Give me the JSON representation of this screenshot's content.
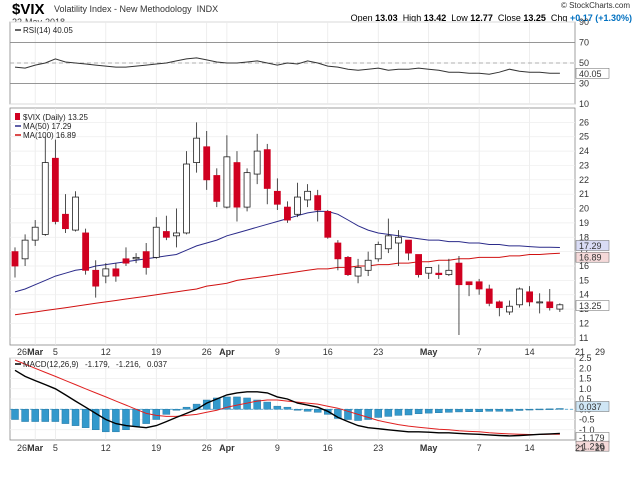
{
  "header": {
    "symbol": "$VIX",
    "name": "Volatility Index - New Methodology",
    "exchange": "INDX",
    "date": "22-May-2018",
    "open_label": "Open",
    "open": "13.03",
    "high_label": "High",
    "high": "13.42",
    "low_label": "Low",
    "low": "12.77",
    "close_label": "Close",
    "close": "13.25",
    "chg_label": "Chg",
    "chg": "+0.17 (+1.30%)",
    "brand": "© StockCharts.com"
  },
  "colors": {
    "up": "#ffffff",
    "down": "#d00020",
    "ma50": "#2b2b8a",
    "ma100": "#d01010",
    "rsi": "#333333",
    "macd": "#000000",
    "signal": "#e02020",
    "hist": "#3399cc"
  },
  "chart_data": [
    {
      "type": "line",
      "panel": "RSI",
      "legend": "RSI(14) 40.05",
      "ylim": [
        10,
        90
      ],
      "y_ticks": [
        10,
        30,
        50,
        70,
        90
      ],
      "reference_lines": [
        30,
        50,
        70
      ],
      "last_label": "40.05",
      "values": [
        46,
        45,
        48,
        50,
        54,
        51,
        50,
        49,
        48,
        47,
        46,
        46,
        47,
        48,
        49,
        50,
        52,
        54,
        55,
        53,
        51,
        50,
        50,
        51,
        52,
        50,
        48,
        50,
        49,
        52,
        50,
        47,
        46,
        44,
        43,
        44,
        45,
        43,
        44,
        44,
        45,
        44,
        43,
        41,
        41,
        40,
        40,
        39,
        41,
        44,
        42,
        41,
        41,
        40,
        40
      ]
    },
    {
      "type": "candlestick",
      "panel": "Price",
      "legend": "$VIX (Daily) 13.25",
      "ma50_label": "MA(50) 17.29",
      "ma100_label": "MA(100) 16.89",
      "ylim": [
        10.5,
        27
      ],
      "y_ticks": [
        11,
        12,
        13,
        14,
        15,
        16,
        17,
        18,
        19,
        20,
        21,
        22,
        23,
        24,
        25,
        26
      ],
      "x_ticks": [
        "26",
        "Mar",
        "5",
        "12",
        "19",
        "26",
        "Apr",
        "9",
        "16",
        "23",
        "May",
        "7",
        "14",
        "21",
        "29"
      ],
      "last_label": "13.25",
      "ma50_last": "17.29",
      "ma100_last": "16.89",
      "candles": [
        [
          17.0,
          16.0,
          17.3,
          15.2
        ],
        [
          16.5,
          17.8,
          18.2,
          16.0
        ],
        [
          17.8,
          18.7,
          19.2,
          17.4
        ],
        [
          18.2,
          23.2,
          25.0,
          18.1
        ],
        [
          23.5,
          19.1,
          24.8,
          18.9
        ],
        [
          19.6,
          18.6,
          21.0,
          18.3
        ],
        [
          18.5,
          20.8,
          21.2,
          18.4
        ],
        [
          18.3,
          15.7,
          18.6,
          15.4
        ],
        [
          15.7,
          14.6,
          16.4,
          13.8
        ],
        [
          15.3,
          15.8,
          16.2,
          14.8
        ],
        [
          15.8,
          15.3,
          16.2,
          14.9
        ],
        [
          16.5,
          16.2,
          17.3,
          16.0
        ],
        [
          16.5,
          16.6,
          16.9,
          16.2
        ],
        [
          17.0,
          15.9,
          17.6,
          15.4
        ],
        [
          16.6,
          18.7,
          19.4,
          16.5
        ],
        [
          18.4,
          18.0,
          19.5,
          17.8
        ],
        [
          18.1,
          18.3,
          20.0,
          17.3
        ],
        [
          18.3,
          23.1,
          24.0,
          18.2
        ],
        [
          23.2,
          24.9,
          26.0,
          22.5
        ],
        [
          24.3,
          22.0,
          25.4,
          21.3
        ],
        [
          22.3,
          20.5,
          22.8,
          20.1
        ],
        [
          20.1,
          23.6,
          25.1,
          20.0
        ],
        [
          23.2,
          20.1,
          24.0,
          19.1
        ],
        [
          20.1,
          22.5,
          22.8,
          19.8
        ],
        [
          22.4,
          24.0,
          25.2,
          21.7
        ],
        [
          24.1,
          21.4,
          24.5,
          20.3
        ],
        [
          21.2,
          20.3,
          22.1,
          19.9
        ],
        [
          20.1,
          19.2,
          20.5,
          19.0
        ],
        [
          19.6,
          20.8,
          21.8,
          19.4
        ],
        [
          20.6,
          21.2,
          21.7,
          20.1
        ],
        [
          20.9,
          19.9,
          21.3,
          19.1
        ],
        [
          19.8,
          18.0,
          19.9,
          17.9
        ],
        [
          17.6,
          16.5,
          17.8,
          15.7
        ],
        [
          16.6,
          15.4,
          16.7,
          15.3
        ],
        [
          15.3,
          15.9,
          16.5,
          14.8
        ],
        [
          15.7,
          16.4,
          17.0,
          15.3
        ],
        [
          16.5,
          17.5,
          17.7,
          16.3
        ],
        [
          17.2,
          18.1,
          19.3,
          16.9
        ],
        [
          17.6,
          18.0,
          18.5,
          16.0
        ],
        [
          17.8,
          16.9,
          17.6,
          16.4
        ],
        [
          16.8,
          15.4,
          16.6,
          15.2
        ],
        [
          15.5,
          15.9,
          15.7,
          15.1
        ],
        [
          15.5,
          15.4,
          16.1,
          15.1
        ],
        [
          15.4,
          15.7,
          16.5,
          15.3
        ],
        [
          16.2,
          14.7,
          16.7,
          11.2
        ],
        [
          14.9,
          14.7,
          14.8,
          13.9
        ],
        [
          14.9,
          14.4,
          15.1,
          14.0
        ],
        [
          14.4,
          13.4,
          14.7,
          13.2
        ],
        [
          13.5,
          13.1,
          13.6,
          12.5
        ],
        [
          12.8,
          13.2,
          13.6,
          12.6
        ],
        [
          13.3,
          14.4,
          14.5,
          13.1
        ],
        [
          14.2,
          13.5,
          14.6,
          13.2
        ],
        [
          13.5,
          13.5,
          14.1,
          12.7
        ],
        [
          13.5,
          13.1,
          14.4,
          12.9
        ],
        [
          13.0,
          13.3,
          13.4,
          12.8
        ]
      ],
      "ma50": [
        14.2,
        14.4,
        14.7,
        15.0,
        15.3,
        15.5,
        15.7,
        15.8,
        16.0,
        16.1,
        16.2,
        16.3,
        16.4,
        16.5,
        16.6,
        16.7,
        16.8,
        17.1,
        17.4,
        17.6,
        17.8,
        18.1,
        18.3,
        18.5,
        18.7,
        18.9,
        19.1,
        19.3,
        19.5,
        19.7,
        19.8,
        19.8,
        19.6,
        19.2,
        18.8,
        18.5,
        18.3,
        18.2,
        18.1,
        18.0,
        17.9,
        17.8,
        17.8,
        17.7,
        17.7,
        17.6,
        17.6,
        17.5,
        17.5,
        17.4,
        17.4,
        17.35,
        17.3,
        17.3,
        17.29
      ],
      "ma100": [
        12.6,
        12.7,
        12.8,
        12.9,
        13.0,
        13.1,
        13.2,
        13.3,
        13.4,
        13.5,
        13.6,
        13.7,
        13.8,
        13.9,
        14.0,
        14.1,
        14.2,
        14.3,
        14.4,
        14.6,
        14.7,
        14.8,
        15.0,
        15.1,
        15.2,
        15.3,
        15.4,
        15.5,
        15.6,
        15.7,
        15.8,
        15.8,
        15.9,
        15.9,
        16.0,
        16.0,
        16.1,
        16.1,
        16.2,
        16.2,
        16.3,
        16.3,
        16.4,
        16.4,
        16.5,
        16.5,
        16.6,
        16.6,
        16.6,
        16.7,
        16.7,
        16.8,
        16.8,
        16.85,
        16.89
      ]
    },
    {
      "type": "line",
      "panel": "MACD",
      "legend_name": "MACD(12,26,9)",
      "legend_macd": "-1.179",
      "legend_signal": "-1.216",
      "legend_hist": "0.037",
      "ylim": [
        -1.5,
        2.5
      ],
      "y_ticks": [
        -1.0,
        -0.5,
        0.0,
        0.5,
        1.0,
        1.5,
        2.0,
        2.5
      ],
      "macd_last_label": "-1.179",
      "signal_last_label": "-1.216",
      "hist_last_label": "0.037",
      "macd": [
        1.9,
        1.6,
        1.4,
        1.2,
        1.0,
        0.7,
        0.4,
        0.1,
        -0.2,
        -0.5,
        -0.7,
        -0.8,
        -0.85,
        -0.9,
        -0.8,
        -0.6,
        -0.4,
        -0.2,
        0.0,
        0.3,
        0.5,
        0.7,
        0.8,
        0.85,
        0.85,
        0.8,
        0.6,
        0.5,
        0.3,
        0.2,
        0.1,
        -0.1,
        -0.4,
        -0.6,
        -0.8,
        -0.9,
        -0.95,
        -1.0,
        -1.05,
        -1.1,
        -1.1,
        -1.12,
        -1.15,
        -1.15,
        -1.18,
        -1.2,
        -1.22,
        -1.25,
        -1.28,
        -1.3,
        -1.28,
        -1.25,
        -1.22,
        -1.2,
        -1.179
      ],
      "signal": [
        2.4,
        2.2,
        2.0,
        1.8,
        1.6,
        1.4,
        1.2,
        1.0,
        0.8,
        0.6,
        0.4,
        0.2,
        0.0,
        -0.2,
        -0.3,
        -0.35,
        -0.35,
        -0.3,
        -0.25,
        -0.15,
        -0.05,
        0.1,
        0.2,
        0.3,
        0.4,
        0.45,
        0.45,
        0.4,
        0.35,
        0.3,
        0.25,
        0.15,
        0.05,
        -0.1,
        -0.25,
        -0.4,
        -0.55,
        -0.65,
        -0.75,
        -0.82,
        -0.88,
        -0.93,
        -0.98,
        -1.0,
        -1.05,
        -1.08,
        -1.1,
        -1.15,
        -1.18,
        -1.2,
        -1.22,
        -1.23,
        -1.23,
        -1.22,
        -1.216
      ],
      "hist": [
        -0.5,
        -0.6,
        -0.6,
        -0.6,
        -0.6,
        -0.7,
        -0.8,
        -0.9,
        -1.0,
        -1.1,
        -1.1,
        -1.0,
        -0.85,
        -0.7,
        -0.5,
        -0.25,
        -0.05,
        0.1,
        0.25,
        0.45,
        0.55,
        0.6,
        0.6,
        0.55,
        0.45,
        0.35,
        0.15,
        0.1,
        -0.05,
        -0.1,
        -0.15,
        -0.25,
        -0.45,
        -0.5,
        -0.55,
        -0.5,
        -0.4,
        -0.35,
        -0.3,
        -0.28,
        -0.22,
        -0.19,
        -0.17,
        -0.15,
        -0.13,
        -0.12,
        -0.12,
        -0.1,
        -0.1,
        -0.1,
        -0.06,
        -0.02,
        0.01,
        0.02,
        0.037
      ]
    }
  ]
}
